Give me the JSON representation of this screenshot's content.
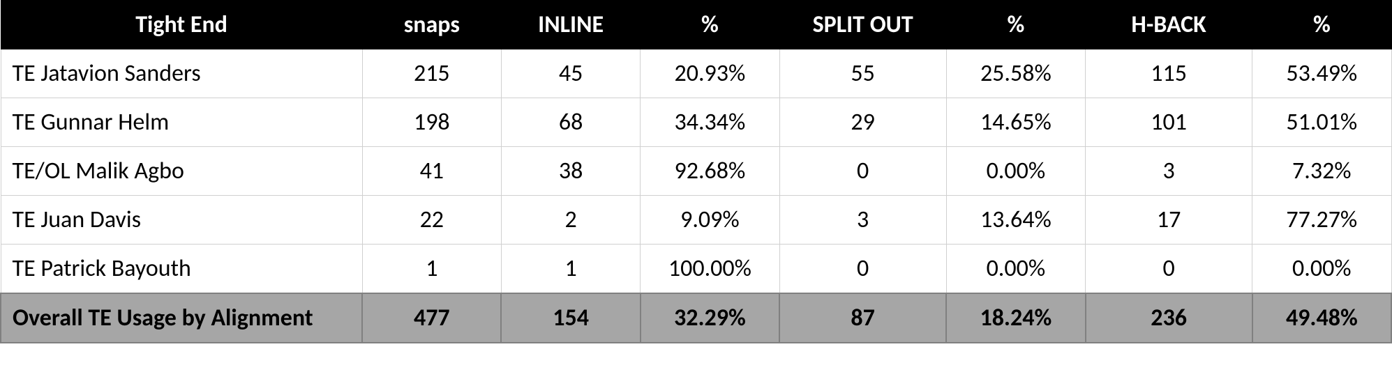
{
  "table": {
    "type": "table",
    "background_color": "#ffffff",
    "header_bg": "#000000",
    "header_fg": "#ffffff",
    "border_color": "#d0d0d0",
    "total_row_bg": "#a6a6a6",
    "font_family": "Calibri",
    "header_fontsize_pt": 26,
    "body_fontsize_pt": 26,
    "columns": [
      {
        "key": "name",
        "label": "Tight End",
        "align": "left",
        "width_pct": 26
      },
      {
        "key": "snaps",
        "label": "snaps",
        "align": "center",
        "width_pct": 10
      },
      {
        "key": "inline",
        "label": "INLINE",
        "align": "center",
        "width_pct": 10
      },
      {
        "key": "pct1",
        "label": "%",
        "align": "center",
        "width_pct": 10
      },
      {
        "key": "split",
        "label": "SPLIT OUT",
        "align": "center",
        "width_pct": 12
      },
      {
        "key": "pct2",
        "label": "%",
        "align": "center",
        "width_pct": 10
      },
      {
        "key": "hback",
        "label": "H-BACK",
        "align": "center",
        "width_pct": 12
      },
      {
        "key": "pct3",
        "label": "%",
        "align": "center",
        "width_pct": 10
      }
    ],
    "rows": [
      {
        "name": "TE Jatavion Sanders",
        "snaps": "215",
        "inline": "45",
        "pct1": "20.93%",
        "split": "55",
        "pct2": "25.58%",
        "hback": "115",
        "pct3": "53.49%"
      },
      {
        "name": "TE Gunnar Helm",
        "snaps": "198",
        "inline": "68",
        "pct1": "34.34%",
        "split": "29",
        "pct2": "14.65%",
        "hback": "101",
        "pct3": "51.01%"
      },
      {
        "name": "TE/OL Malik Agbo",
        "snaps": "41",
        "inline": "38",
        "pct1": "92.68%",
        "split": "0",
        "pct2": "0.00%",
        "hback": "3",
        "pct3": "7.32%"
      },
      {
        "name": "TE Juan Davis",
        "snaps": "22",
        "inline": "2",
        "pct1": "9.09%",
        "split": "3",
        "pct2": "13.64%",
        "hback": "17",
        "pct3": "77.27%"
      },
      {
        "name": "TE Patrick Bayouth",
        "snaps": "1",
        "inline": "1",
        "pct1": "100.00%",
        "split": "0",
        "pct2": "0.00%",
        "hback": "0",
        "pct3": "0.00%"
      }
    ],
    "total": {
      "name": "Overall TE Usage by Alignment",
      "snaps": "477",
      "inline": "154",
      "pct1": "32.29%",
      "split": "87",
      "pct2": "18.24%",
      "hback": "236",
      "pct3": "49.48%"
    }
  }
}
